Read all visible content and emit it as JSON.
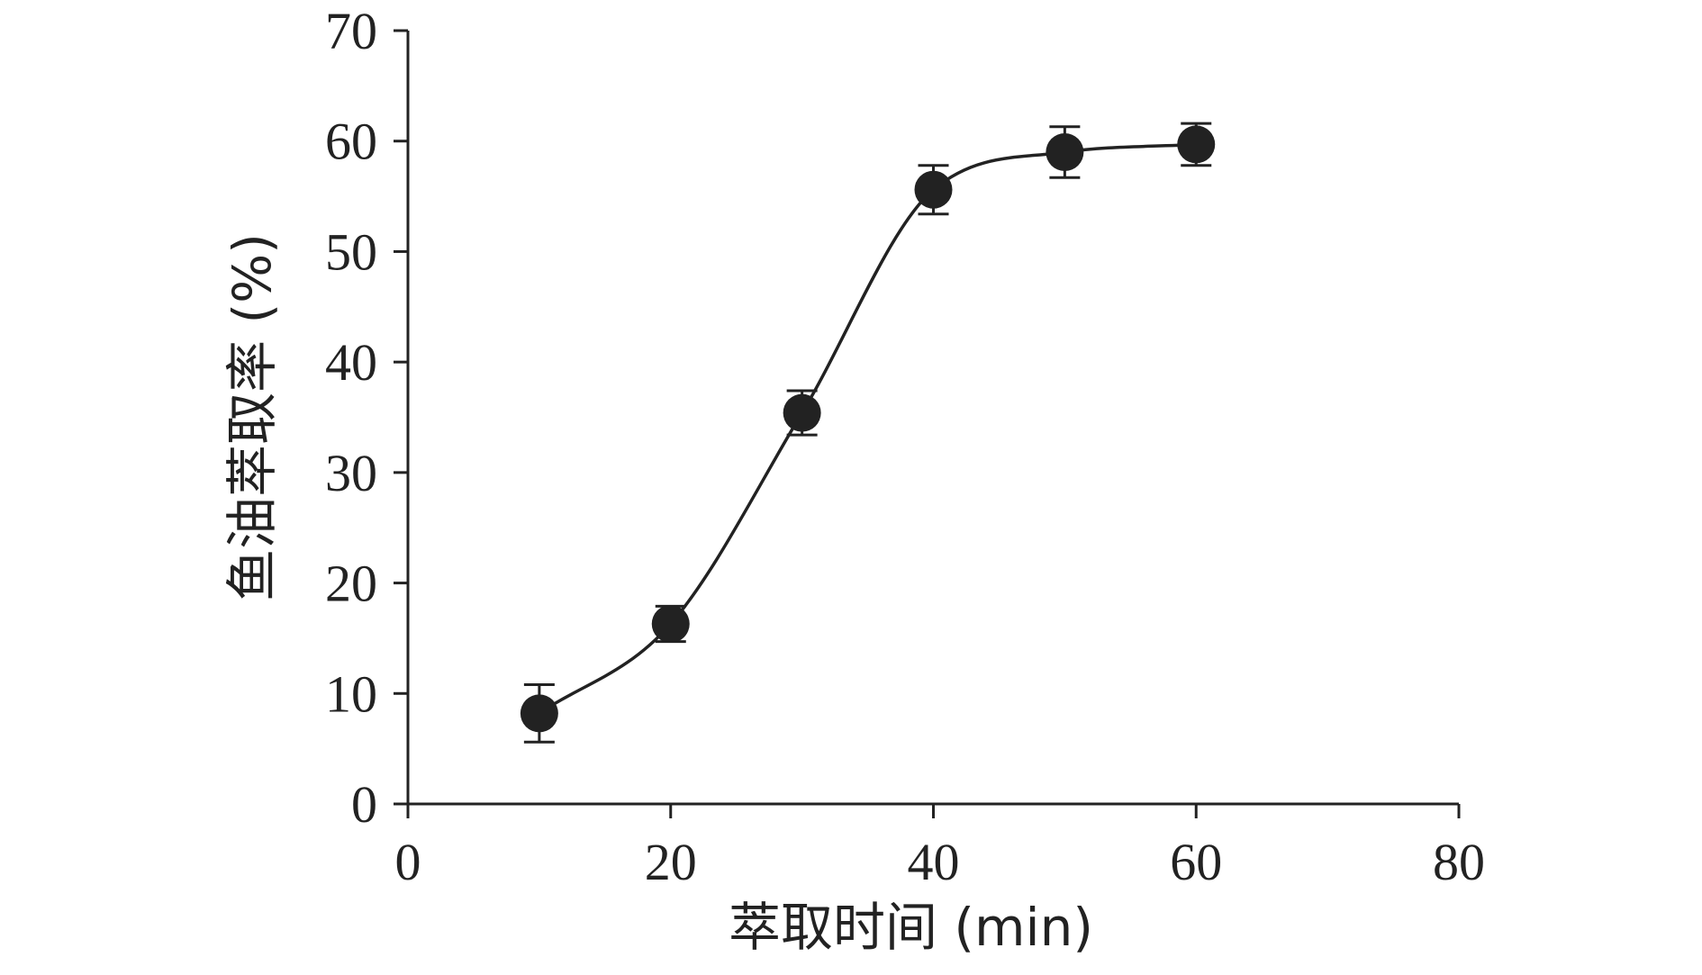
{
  "chart_data": {
    "type": "scatter",
    "title": "",
    "xlabel": "萃取时间 (min)",
    "ylabel": "鱼油萃取率 (%)",
    "xlim": [
      0,
      80
    ],
    "ylim": [
      0,
      70
    ],
    "x_ticks": [
      0,
      20,
      40,
      60,
      80
    ],
    "y_ticks": [
      0,
      10,
      20,
      30,
      40,
      50,
      60,
      70
    ],
    "grid": false,
    "legend": "none",
    "series": [
      {
        "x": [
          10,
          20,
          30,
          40,
          50,
          60
        ],
        "y": [
          8.2,
          16.3,
          35.4,
          55.6,
          59.0,
          59.7
        ],
        "error": [
          2.6,
          1.6,
          2.0,
          2.2,
          2.3,
          1.9
        ]
      }
    ],
    "fit_curve": "sigmoid",
    "colors": {
      "marker": "#222222",
      "line": "#222222",
      "axis": "#222222"
    }
  }
}
